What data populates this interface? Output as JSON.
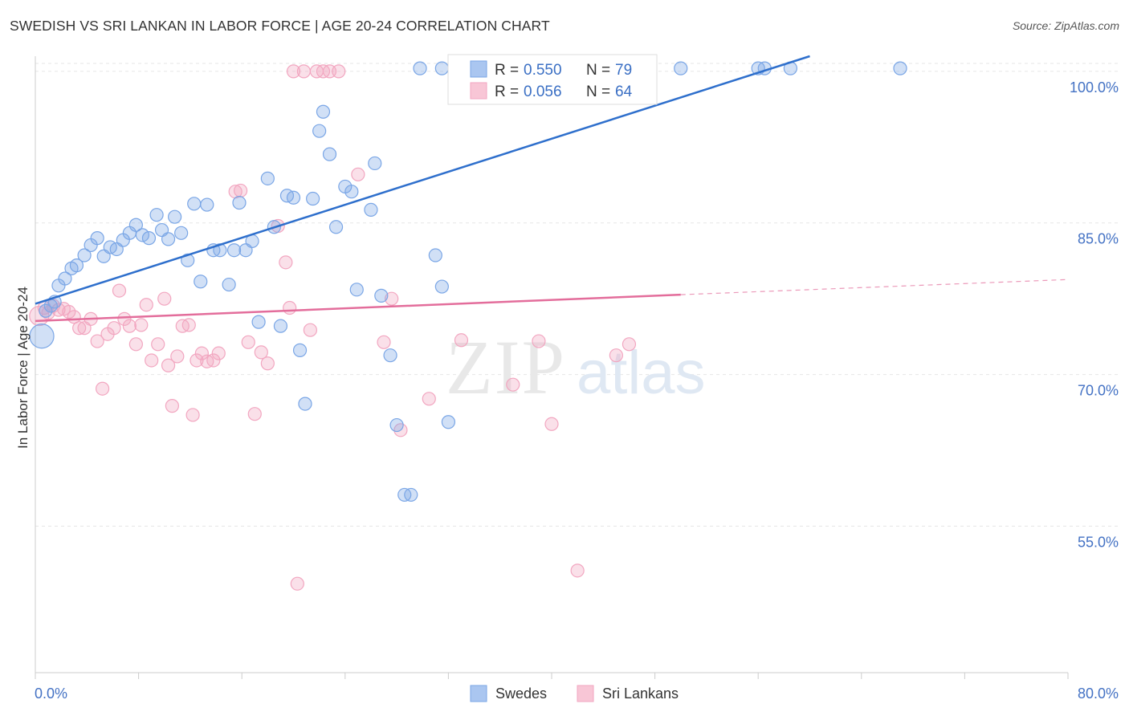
{
  "header": {
    "title": "SWEDISH VS SRI LANKAN IN LABOR FORCE | AGE 20-24 CORRELATION CHART",
    "source": "Source: ZipAtlas.com"
  },
  "chart_data": {
    "type": "scatter",
    "title": "SWEDISH VS SRI LANKAN IN LABOR FORCE | AGE 20-24 CORRELATION CHART",
    "ylabel": "In Labor Force | Age 20-24",
    "xlabel": "",
    "xlim": [
      0,
      80
    ],
    "ylim": [
      40.5,
      101.5
    ],
    "x_tick_labels": [
      "0.0%",
      "80.0%"
    ],
    "y_ticks": [
      55,
      70,
      85,
      100
    ],
    "y_tick_labels": [
      "55.0%",
      "70.0%",
      "85.0%",
      "100.0%"
    ],
    "grid": true,
    "legend_placement": "top-center",
    "watermark": "ZIPatlas",
    "series": [
      {
        "name": "Swedes",
        "color": "#7aa6e6",
        "line_color": "#2e6fcc",
        "R": "0.550",
        "N": "79",
        "trend": {
          "x1": 0,
          "y1": 77.0,
          "x2": 60,
          "y2": 101.5
        },
        "points": [
          [
            0.5,
            73.8
          ],
          [
            0.8,
            76.3
          ],
          [
            1.2,
            76.8
          ],
          [
            1.5,
            77.2
          ],
          [
            1.8,
            78.8
          ],
          [
            2.3,
            79.5
          ],
          [
            2.8,
            80.5
          ],
          [
            3.2,
            80.8
          ],
          [
            3.8,
            81.8
          ],
          [
            4.3,
            82.8
          ],
          [
            4.8,
            83.5
          ],
          [
            5.3,
            81.7
          ],
          [
            5.8,
            82.6
          ],
          [
            6.3,
            82.4
          ],
          [
            6.8,
            83.3
          ],
          [
            7.3,
            84.0
          ],
          [
            7.8,
            84.8
          ],
          [
            8.3,
            83.8
          ],
          [
            8.8,
            83.5
          ],
          [
            9.4,
            85.8
          ],
          [
            9.8,
            84.3
          ],
          [
            10.3,
            83.4
          ],
          [
            10.8,
            85.6
          ],
          [
            11.3,
            84.0
          ],
          [
            11.8,
            81.3
          ],
          [
            12.3,
            86.9
          ],
          [
            12.8,
            79.2
          ],
          [
            13.3,
            86.8
          ],
          [
            13.8,
            82.3
          ],
          [
            14.3,
            82.3
          ],
          [
            15.0,
            78.9
          ],
          [
            15.4,
            82.3
          ],
          [
            15.8,
            87.0
          ],
          [
            16.3,
            82.3
          ],
          [
            16.8,
            83.2
          ],
          [
            17.3,
            75.2
          ],
          [
            18.0,
            89.4
          ],
          [
            18.5,
            84.6
          ],
          [
            19.0,
            74.8
          ],
          [
            19.5,
            87.7
          ],
          [
            20.0,
            87.5
          ],
          [
            20.5,
            72.4
          ],
          [
            20.9,
            67.1
          ],
          [
            21.5,
            87.4
          ],
          [
            22.0,
            94.1
          ],
          [
            22.3,
            96.0
          ],
          [
            22.8,
            91.8
          ],
          [
            23.3,
            84.6
          ],
          [
            24.0,
            88.6
          ],
          [
            24.5,
            88.1
          ],
          [
            24.9,
            78.4
          ],
          [
            26.0,
            86.3
          ],
          [
            26.3,
            90.9
          ],
          [
            26.8,
            77.8
          ],
          [
            27.5,
            71.9
          ],
          [
            28.0,
            65.0
          ],
          [
            28.6,
            58.1
          ],
          [
            29.1,
            58.1
          ],
          [
            29.8,
            100.3
          ],
          [
            31.0,
            81.8
          ],
          [
            31.5,
            100.3
          ],
          [
            31.5,
            78.7
          ],
          [
            32.0,
            65.3
          ],
          [
            33.5,
            100.3
          ],
          [
            35.5,
            100.3
          ],
          [
            37.5,
            100.3
          ],
          [
            40.0,
            100.3
          ],
          [
            41.5,
            100.3
          ],
          [
            43.5,
            100.3
          ],
          [
            47.5,
            100.3
          ],
          [
            50.0,
            100.3
          ],
          [
            56.0,
            100.3
          ],
          [
            56.5,
            100.3
          ],
          [
            58.5,
            100.3
          ],
          [
            67.0,
            100.3
          ],
          [
            34.5,
            100.0
          ],
          [
            36.0,
            98.2
          ],
          [
            43.0,
            100.3
          ],
          [
            45.5,
            100.0
          ]
        ]
      },
      {
        "name": "Sri Lankans",
        "color": "#f2a6c0",
        "line_color": "#e36d9b",
        "R": "0.056",
        "N": "64",
        "trend": {
          "x1": 0,
          "y1": 75.3,
          "x2": 50,
          "y2": 77.9
        },
        "trend_dashed": {
          "x1": 50,
          "y1": 77.9,
          "x2": 80,
          "y2": 79.4
        },
        "points": [
          [
            0.3,
            75.8
          ],
          [
            0.7,
            76.6
          ],
          [
            1.0,
            76.1
          ],
          [
            1.4,
            76.8
          ],
          [
            1.8,
            76.4
          ],
          [
            2.2,
            76.5
          ],
          [
            2.6,
            76.2
          ],
          [
            3.0,
            75.7
          ],
          [
            3.4,
            74.6
          ],
          [
            3.8,
            74.6
          ],
          [
            4.3,
            75.5
          ],
          [
            4.8,
            73.3
          ],
          [
            5.2,
            68.6
          ],
          [
            5.6,
            74.0
          ],
          [
            6.1,
            74.6
          ],
          [
            6.5,
            78.3
          ],
          [
            6.9,
            75.5
          ],
          [
            7.3,
            74.8
          ],
          [
            7.8,
            73.0
          ],
          [
            8.2,
            74.9
          ],
          [
            8.6,
            76.9
          ],
          [
            9.0,
            71.4
          ],
          [
            9.5,
            73.0
          ],
          [
            10.0,
            77.5
          ],
          [
            10.3,
            70.9
          ],
          [
            10.6,
            66.9
          ],
          [
            11.0,
            71.8
          ],
          [
            11.4,
            74.8
          ],
          [
            11.9,
            74.9
          ],
          [
            12.2,
            66.0
          ],
          [
            12.5,
            71.4
          ],
          [
            12.9,
            72.1
          ],
          [
            13.3,
            71.3
          ],
          [
            13.8,
            71.4
          ],
          [
            14.2,
            72.1
          ],
          [
            15.5,
            88.1
          ],
          [
            15.9,
            88.2
          ],
          [
            16.5,
            73.2
          ],
          [
            17.0,
            66.1
          ],
          [
            17.5,
            72.2
          ],
          [
            18.0,
            71.1
          ],
          [
            18.8,
            84.7
          ],
          [
            19.4,
            81.1
          ],
          [
            19.7,
            76.6
          ],
          [
            20.0,
            100.0
          ],
          [
            20.3,
            49.3
          ],
          [
            20.8,
            100.0
          ],
          [
            21.3,
            74.4
          ],
          [
            21.8,
            100.0
          ],
          [
            22.3,
            100.0
          ],
          [
            22.8,
            100.0
          ],
          [
            23.5,
            100.0
          ],
          [
            25.0,
            89.8
          ],
          [
            27.0,
            73.2
          ],
          [
            27.6,
            77.5
          ],
          [
            28.3,
            64.5
          ],
          [
            30.5,
            67.6
          ],
          [
            33.0,
            73.4
          ],
          [
            37.0,
            69.0
          ],
          [
            39.0,
            73.3
          ],
          [
            42.0,
            50.6
          ],
          [
            40.0,
            65.1
          ],
          [
            45.0,
            71.9
          ],
          [
            46.0,
            73.0
          ]
        ]
      }
    ]
  }
}
